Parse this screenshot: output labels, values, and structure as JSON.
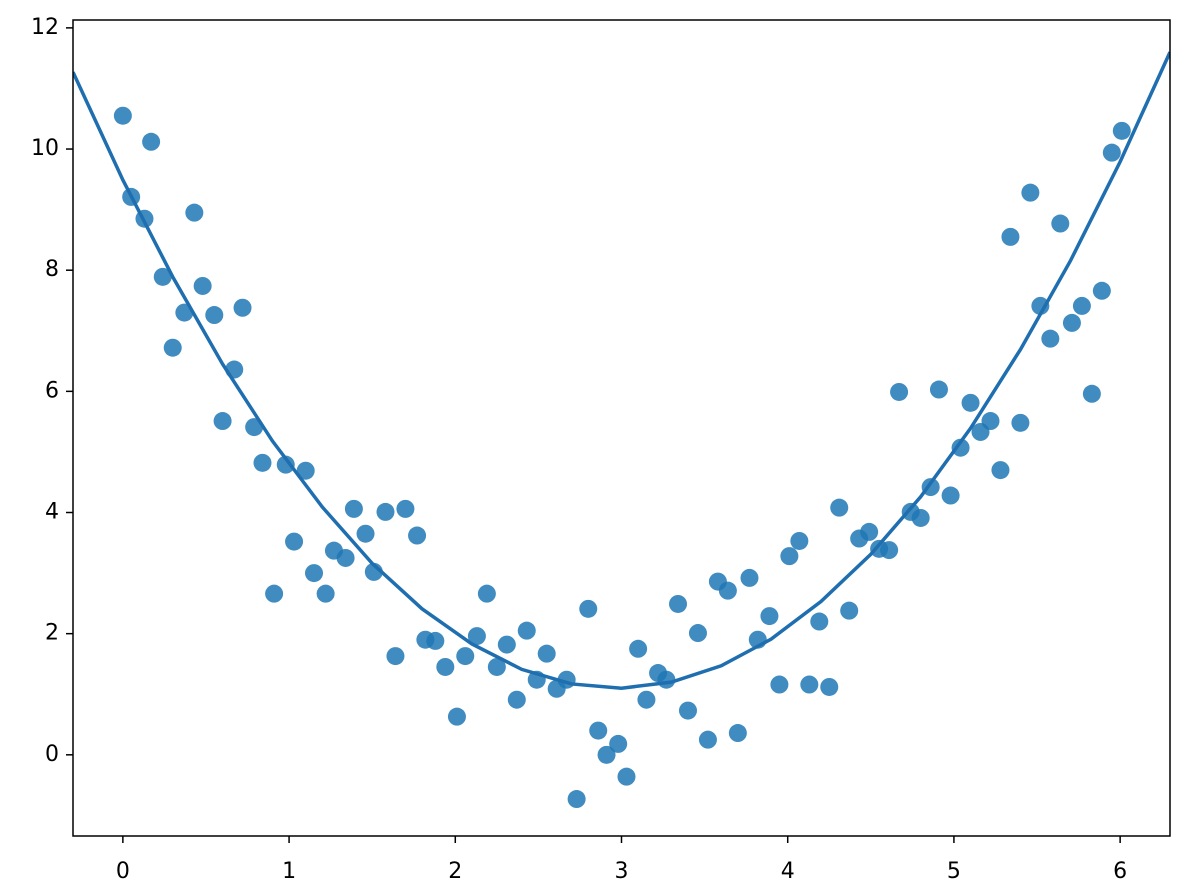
{
  "chart_data": {
    "type": "scatter",
    "xlim": [
      -0.3,
      6.3
    ],
    "ylim": [
      -1.34,
      12.13
    ],
    "xticks": [
      0,
      1,
      2,
      3,
      4,
      5,
      6
    ],
    "yticks": [
      0,
      2,
      4,
      6,
      8,
      10,
      12
    ],
    "series": [
      {
        "type": "scatter",
        "color": "#1f77b4",
        "x": [
          0,
          0.05,
          0.17,
          0.13,
          0.24,
          0.37,
          0.3,
          0.43,
          0.48,
          0.55,
          0.72,
          0.67,
          0.6,
          0.79,
          0.84,
          0.98,
          1.1,
          1.03,
          0.91,
          1.15,
          1.22,
          1.27,
          1.34,
          1.39,
          1.46,
          1.51,
          1.58,
          1.7,
          1.77,
          1.64,
          1.82,
          1.88,
          1.94,
          2.01,
          2.06,
          2.13,
          2.19,
          2.25,
          2.31,
          2.37,
          2.43,
          2.49,
          2.55,
          2.61,
          2.67,
          2.73,
          2.8,
          2.86,
          2.91,
          2.98,
          3.03,
          3.1,
          3.15,
          3.22,
          3.27,
          3.34,
          3.4,
          3.46,
          3.52,
          3.58,
          3.64,
          3.7,
          3.77,
          3.82,
          3.89,
          3.95,
          4.01,
          4.07,
          4.13,
          4.19,
          4.25,
          4.31,
          4.37,
          4.43,
          4.49,
          4.55,
          4.61,
          4.67,
          4.74,
          4.8,
          4.86,
          4.91,
          4.98,
          5.04,
          5.1,
          5.16,
          5.22,
          5.28,
          5.34,
          5.4,
          5.46,
          5.52,
          5.58,
          5.64,
          5.71,
          5.77,
          5.83,
          5.89,
          5.95,
          6.01
        ],
        "values": [
          10.55,
          9.21,
          10.12,
          8.85,
          7.89,
          7.3,
          6.72,
          8.95,
          7.74,
          7.26,
          7.38,
          6.36,
          5.51,
          5.41,
          4.82,
          4.79,
          4.69,
          3.52,
          2.66,
          3.0,
          2.66,
          3.37,
          3.25,
          4.06,
          3.65,
          3.02,
          4.01,
          4.06,
          3.62,
          1.63,
          1.9,
          1.88,
          1.45,
          0.63,
          1.63,
          1.96,
          2.66,
          1.45,
          1.82,
          0.91,
          2.05,
          1.24,
          1.67,
          1.09,
          1.24,
          -0.73,
          2.41,
          0.4,
          0.0,
          0.18,
          -0.36,
          1.75,
          0.91,
          1.35,
          1.24,
          2.49,
          0.73,
          2.01,
          0.25,
          2.86,
          2.71,
          0.36,
          2.92,
          1.9,
          2.29,
          1.16,
          3.28,
          3.53,
          1.16,
          2.2,
          1.12,
          4.08,
          2.38,
          3.57,
          3.68,
          3.4,
          3.38,
          5.99,
          4.01,
          3.91,
          4.42,
          6.03,
          4.28,
          5.07,
          5.81,
          5.33,
          5.51,
          4.7,
          8.55,
          5.48,
          9.28,
          7.41,
          6.87,
          8.77,
          7.13,
          7.41,
          5.96,
          7.66,
          9.94,
          10.3
        ]
      },
      {
        "type": "line",
        "color": "#1f6fb0",
        "x": [
          -0.3,
          0,
          0.3,
          0.6,
          0.9,
          1.2,
          1.5,
          1.8,
          2.1,
          2.4,
          2.7,
          3.0,
          3.3,
          3.6,
          3.9,
          4.2,
          4.5,
          4.8,
          5.1,
          5.4,
          5.7,
          6.0,
          6.3
        ],
        "values": [
          11.27,
          9.49,
          7.89,
          6.45,
          5.18,
          4.09,
          3.16,
          2.41,
          1.83,
          1.41,
          1.17,
          1.1,
          1.2,
          1.47,
          1.91,
          2.53,
          3.31,
          4.26,
          5.39,
          6.69,
          8.15,
          9.79,
          11.6
        ]
      }
    ]
  }
}
